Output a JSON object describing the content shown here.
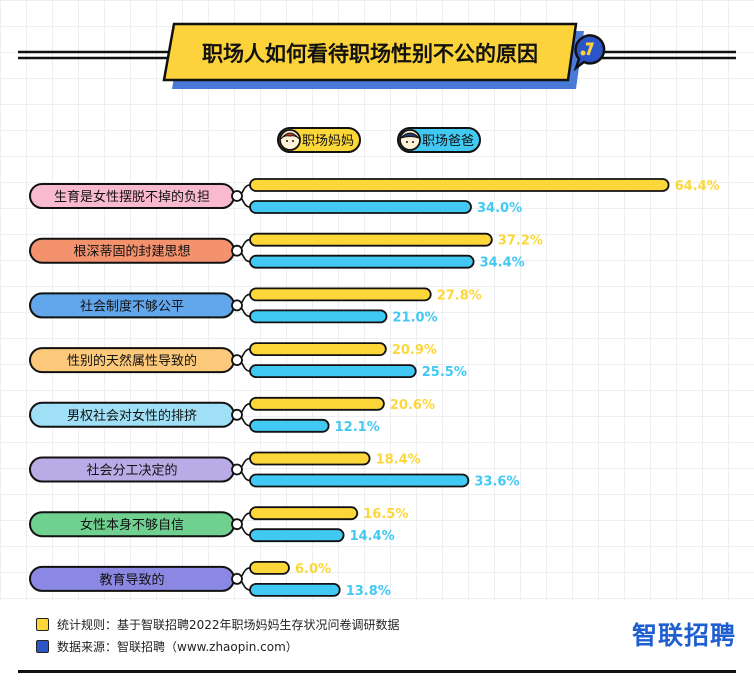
{
  "title": "职场人如何看待职场性别不公的原因",
  "legend": [
    {
      "name": "职场妈妈",
      "color": "#fcd73a"
    },
    {
      "name": "职场爸爸",
      "color": "#42c9f3"
    }
  ],
  "chart_data": {
    "type": "bar",
    "orientation": "horizontal",
    "title": "职场人如何看待职场性别不公的原因",
    "categories": [
      "生育是女性摆脱不掉的负担",
      "根深蒂固的封建思想",
      "社会制度不够公平",
      "性别的天然属性导致的",
      "男权社会对女性的排挤",
      "社会分工决定的",
      "女性本身不够自信",
      "教育导致的"
    ],
    "category_colors": [
      "#f9b9cf",
      "#f5926e",
      "#62a6ec",
      "#fcc97a",
      "#9fe0f6",
      "#b9abe6",
      "#6fd08f",
      "#8b88e4"
    ],
    "series": [
      {
        "name": "职场妈妈",
        "color": "#fcd73a",
        "values": [
          64.4,
          37.2,
          27.8,
          20.9,
          20.6,
          18.4,
          16.5,
          6.0
        ]
      },
      {
        "name": "职场爸爸",
        "color": "#42c9f3",
        "values": [
          34.0,
          34.4,
          21.0,
          25.5,
          12.1,
          33.6,
          14.4,
          13.8
        ]
      }
    ],
    "value_suffix": "%",
    "legend_position": "top-center"
  },
  "footer": {
    "rule": "统计规则：基于智联招聘2022年职场妈妈生存状况问卷调研数据",
    "source": "数据来源：智联招聘（www.zhaopin.com）",
    "brand": "智联招聘"
  }
}
